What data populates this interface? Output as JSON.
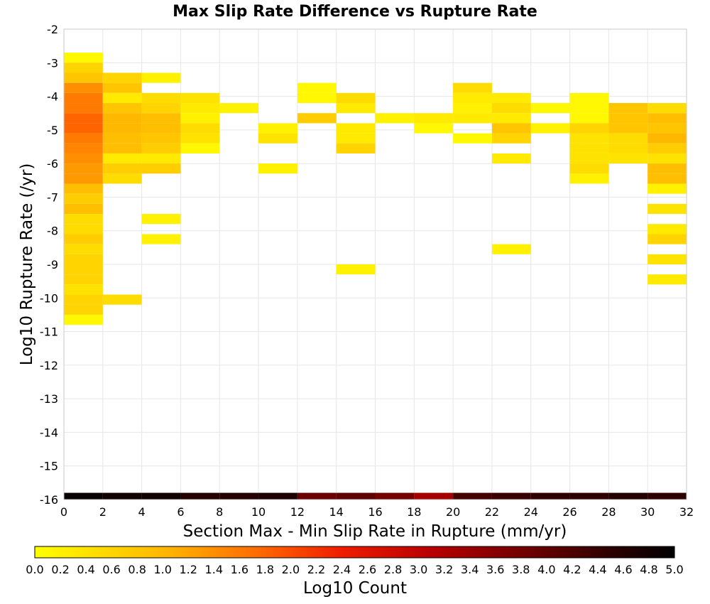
{
  "chart_data": {
    "type": "heatmap",
    "title": "Max Slip Rate Difference vs Rupture Rate",
    "xlabel": "Section Max - Min Slip Rate in Rupture (mm/yr)",
    "ylabel": "Log10 Rupture Rate (/yr)",
    "xlim": [
      0,
      32
    ],
    "ylim": [
      -16,
      -2
    ],
    "x_ticks": [
      "0",
      "2",
      "4",
      "6",
      "8",
      "10",
      "12",
      "14",
      "16",
      "18",
      "20",
      "22",
      "24",
      "26",
      "28",
      "30",
      "32"
    ],
    "y_ticks": [
      "-16",
      "-15",
      "-14",
      "-13",
      "-12",
      "-11",
      "-10",
      "-9",
      "-8",
      "-7",
      "-6",
      "-5",
      "-4",
      "-3",
      "-2"
    ],
    "grid": true,
    "x_bin_width": 2,
    "y_bin_height": 0.3,
    "colorbar": {
      "label": "Log10 Count",
      "range": [
        0,
        5
      ],
      "ticks": [
        "0.0",
        "0.2",
        "0.4",
        "0.6",
        "0.8",
        "1.0",
        "1.2",
        "1.4",
        "1.6",
        "1.8",
        "2.0",
        "2.2",
        "2.4",
        "2.6",
        "2.8",
        "3.0",
        "3.2",
        "3.4",
        "3.6",
        "3.8",
        "4.0",
        "4.2",
        "4.4",
        "4.6",
        "4.8",
        "5.0"
      ],
      "placement": "bottom"
    },
    "summary_row": {
      "y": -15.9,
      "x": [
        1,
        3,
        5,
        7,
        9,
        11,
        13,
        15,
        17,
        19,
        21,
        23,
        25,
        27,
        29,
        31
      ],
      "values": [
        4.9,
        4.8,
        4.8,
        4.6,
        4.6,
        4.7,
        3.9,
        4.0,
        3.8,
        3.3,
        4.3,
        4.4,
        4.5,
        4.5,
        4.6,
        4.5
      ]
    },
    "cells": [
      {
        "x": 1,
        "y": [
          -2.85,
          -3.15,
          -3.45,
          -3.75,
          -4.05,
          -4.35,
          -4.65,
          -4.95,
          -5.25,
          -5.55,
          -5.85,
          -6.15,
          -6.45,
          -6.75,
          -7.05,
          -7.35,
          -7.65,
          -7.95,
          -8.25,
          -8.55,
          -8.85,
          -9.15,
          -9.45,
          -9.75,
          -10.05,
          -10.35,
          -10.65
        ],
        "values": [
          0.1,
          0.6,
          0.8,
          1.4,
          1.6,
          1.6,
          1.8,
          1.8,
          1.6,
          1.5,
          1.4,
          1.3,
          1.3,
          0.9,
          0.7,
          0.9,
          0.5,
          0.5,
          0.7,
          0.5,
          0.6,
          0.6,
          0.6,
          0.4,
          0.6,
          0.6,
          0.1
        ]
      },
      {
        "x": 3,
        "y": [
          -3.45,
          -3.75,
          -4.05,
          -4.35,
          -4.65,
          -4.95,
          -5.25,
          -5.55,
          -5.85,
          -6.15,
          -6.45,
          -10.05
        ],
        "values": [
          0.6,
          0.8,
          0.3,
          0.8,
          1.0,
          1.0,
          0.9,
          0.9,
          0.3,
          0.7,
          0.5,
          0.5
        ]
      },
      {
        "x": 5,
        "y": [
          -3.45,
          -4.05,
          -4.35,
          -4.65,
          -4.95,
          -5.25,
          -5.55,
          -5.85,
          -6.15,
          -7.65,
          -8.25
        ],
        "values": [
          0.2,
          0.5,
          0.6,
          0.9,
          0.9,
          0.8,
          0.7,
          0.3,
          0.7,
          0.2,
          0.2
        ]
      },
      {
        "x": 7,
        "y": [
          -4.05,
          -4.35,
          -4.65,
          -4.95,
          -5.25,
          -5.55
        ],
        "values": [
          0.4,
          0.3,
          0.2,
          0.5,
          0.4,
          0.1
        ]
      },
      {
        "x": 9,
        "y": [
          -4.35
        ],
        "values": [
          0.2
        ]
      },
      {
        "x": 11,
        "y": [
          -4.95,
          -5.25,
          -6.15
        ],
        "values": [
          0.2,
          0.4,
          0.2
        ]
      },
      {
        "x": 13,
        "y": [
          -3.75,
          -4.05,
          -4.65
        ],
        "values": [
          0.1,
          0.1,
          0.7
        ]
      },
      {
        "x": 15,
        "y": [
          -4.05,
          -4.35,
          -4.95,
          -5.25,
          -5.55,
          -9.15
        ],
        "values": [
          0.5,
          0.3,
          0.3,
          0.3,
          0.6,
          0.2
        ]
      },
      {
        "x": 17,
        "y": [
          -4.65
        ],
        "values": [
          0.2
        ]
      },
      {
        "x": 19,
        "y": [
          -4.65,
          -4.95
        ],
        "values": [
          0.3,
          0.1
        ]
      },
      {
        "x": 21,
        "y": [
          -3.75,
          -4.05,
          -4.35,
          -4.65,
          -5.25
        ],
        "values": [
          0.5,
          0.3,
          0.2,
          0.3,
          0.1
        ]
      },
      {
        "x": 23,
        "y": [
          -4.05,
          -4.35,
          -4.65,
          -4.95,
          -5.25,
          -5.85,
          -8.55
        ],
        "values": [
          0.3,
          0.5,
          0.3,
          0.8,
          0.6,
          0.3,
          0.2
        ]
      },
      {
        "x": 25,
        "y": [
          -4.35,
          -4.95
        ],
        "values": [
          0.1,
          0.2
        ]
      },
      {
        "x": 27,
        "y": [
          -4.05,
          -4.35,
          -4.65,
          -4.95,
          -5.25,
          -5.55,
          -5.85,
          -6.15,
          -6.45
        ],
        "values": [
          0.1,
          0.1,
          0.1,
          0.6,
          0.4,
          0.4,
          0.4,
          0.5,
          0.2
        ]
      },
      {
        "x": 29,
        "y": [
          -4.35,
          -4.65,
          -4.95,
          -5.25,
          -5.55,
          -5.85
        ],
        "values": [
          0.8,
          0.8,
          0.8,
          0.5,
          0.5,
          0.4
        ]
      },
      {
        "x": 31,
        "y": [
          -4.35,
          -4.65,
          -4.95,
          -5.25,
          -5.55,
          -5.85,
          -6.15,
          -6.45,
          -6.75,
          -7.35,
          -7.95,
          -8.25,
          -8.85,
          -9.45
        ],
        "values": [
          0.5,
          0.9,
          0.8,
          1.0,
          0.7,
          0.4,
          0.9,
          0.9,
          0.2,
          0.4,
          0.3,
          0.6,
          0.4,
          0.3
        ]
      }
    ]
  }
}
